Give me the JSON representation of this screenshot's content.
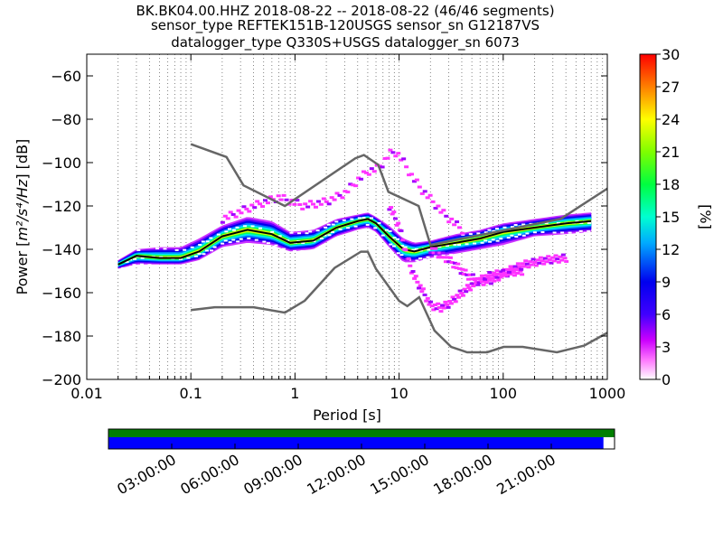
{
  "title": {
    "line1": "BK.BK04.00.HHZ   2018-08-22 -- 2018-08-22  (46/46 segments)",
    "line2": "sensor_type REFTEK151B-120USGS sensor_sn G12187VS",
    "line3": "datalogger_type Q330S+USGS datalogger_sn 6073"
  },
  "colorbar": {
    "label": "[%]",
    "ticks": [
      "0",
      "3",
      "6",
      "9",
      "12",
      "15",
      "18",
      "21",
      "24",
      "27",
      "30"
    ],
    "range": [
      0,
      30
    ]
  },
  "timeline": {
    "labels": [
      "03:00:00",
      "06:00:00",
      "09:00:00",
      "12:00:00",
      "15:00:00",
      "18:00:00",
      "21:00:00"
    ],
    "data_bar_color": "#0000ff",
    "gap_bar_color": "#007f00",
    "coverage_fraction": 0.978
  },
  "chart_data": {
    "type": "heatmap",
    "xlabel": "Period [s]",
    "ylabel": "Power [m²/s⁴/Hz] [dB]",
    "ylabel_parts": {
      "prefix": "Power [",
      "unit": "m²/s⁴/Hz",
      "suffix": "] [dB]"
    },
    "xscale": "log",
    "xlim": [
      0.01,
      1000
    ],
    "ylim": [
      -200,
      -50
    ],
    "x_ticks": [
      0.01,
      0.1,
      1,
      10,
      100,
      1000
    ],
    "x_tick_labels": [
      "0.01",
      "0.1",
      "1",
      "10",
      "100",
      "1000"
    ],
    "y_ticks": [
      -200,
      -180,
      -160,
      -140,
      -120,
      -100,
      -80,
      -60
    ],
    "y_tick_labels": [
      "−200",
      "−180",
      "−160",
      "−140",
      "−120",
      "−100",
      "−80",
      "−60"
    ],
    "grid": "vertical dotted lines at periods",
    "nhnm": {
      "name": "NHNM",
      "x": [
        0.1,
        0.22,
        0.32,
        0.8,
        3.8,
        4.6,
        6.3,
        7.9,
        15.4,
        20,
        354.8,
        1000
      ],
      "y": [
        -91.5,
        -97.4,
        -110.5,
        -120,
        -98,
        -96.5,
        -101,
        -113.5,
        -120,
        -138,
        -126,
        -112
      ]
    },
    "nlnm": {
      "name": "NLNM",
      "x": [
        0.1,
        0.17,
        0.4,
        0.8,
        1.24,
        2.4,
        4.3,
        5,
        6,
        10,
        12,
        15.6,
        21.9,
        31.6,
        45,
        70,
        101,
        154,
        328,
        600,
        1000
      ],
      "y": [
        -168,
        -166.7,
        -166.7,
        -169.2,
        -163.7,
        -148.6,
        -141.1,
        -141.1,
        -149,
        -163.8,
        -166.2,
        -162.1,
        -177.5,
        -185,
        -187.5,
        -187.5,
        -185,
        -185,
        -187.5,
        -184.4,
        -178.5
      ]
    },
    "mode_line": {
      "name": "mode",
      "x": [
        0.02,
        0.03,
        0.05,
        0.08,
        0.12,
        0.2,
        0.35,
        0.6,
        0.9,
        1.5,
        2.5,
        4,
        5,
        6,
        8,
        11,
        14,
        20,
        35,
        60,
        100,
        200,
        400,
        700
      ],
      "y": [
        -147,
        -143,
        -144,
        -144,
        -141,
        -134,
        -131,
        -133,
        -137,
        -136,
        -130,
        -127,
        -126,
        -128,
        -134,
        -140,
        -141,
        -139,
        -137,
        -135,
        -132,
        -130,
        -128,
        -127
      ]
    },
    "psd_density_bands": [
      {
        "x": [
          0.02,
          0.03,
          0.05,
          0.08,
          0.12,
          0.2,
          0.35,
          0.6,
          0.9,
          1.5,
          2.5,
          4,
          5,
          6,
          8,
          11,
          14,
          20,
          35,
          60,
          100,
          200,
          400,
          700
        ],
        "lo": [
          -149,
          -147,
          -147,
          -147,
          -145,
          -139,
          -137,
          -138,
          -141,
          -140,
          -134,
          -131,
          -130,
          -132,
          -139,
          -146,
          -146,
          -144,
          -142,
          -140,
          -138,
          -134,
          -133,
          -132
        ],
        "hi": [
          -145,
          -140,
          -139,
          -139,
          -135,
          -129,
          -125,
          -127,
          -132,
          -131,
          -126,
          -124,
          -123,
          -125,
          -129,
          -135,
          -137,
          -136,
          -133,
          -131,
          -128,
          -126,
          -124,
          -123
        ]
      }
    ],
    "psd_outlier_curves": [
      {
        "x": [
          0.2,
          0.4,
          0.7,
          1.2,
          2,
          3,
          4,
          5,
          6,
          7,
          8,
          9,
          10,
          11,
          13,
          16,
          20,
          27,
          40
        ],
        "y": [
          -126,
          -120,
          -116,
          -120,
          -118,
          -114,
          -108,
          -104,
          -103,
          -100,
          -96,
          -95,
          -97,
          -100,
          -106,
          -112,
          -117,
          -124,
          -131
        ]
      },
      {
        "x": [
          8,
          10,
          12,
          14,
          17,
          20,
          25,
          30,
          40,
          55,
          75,
          100,
          150
        ],
        "y": [
          -120,
          -130,
          -145,
          -153,
          -160,
          -166,
          -167,
          -165,
          -160,
          -155,
          -152,
          -151,
          -150
        ]
      },
      {
        "x": [
          20,
          30,
          45,
          60,
          80,
          110,
          160,
          250,
          400
        ],
        "y": [
          -140,
          -145,
          -152,
          -155,
          -154,
          -150,
          -147,
          -145,
          -144
        ]
      }
    ],
    "colorbar_scale": "rainbow (white/magenta = 0%, blue ≈ 6%, cyan ≈ 12%, green ≈ 18%, yellow ≈ 24%, red = 30%)"
  }
}
